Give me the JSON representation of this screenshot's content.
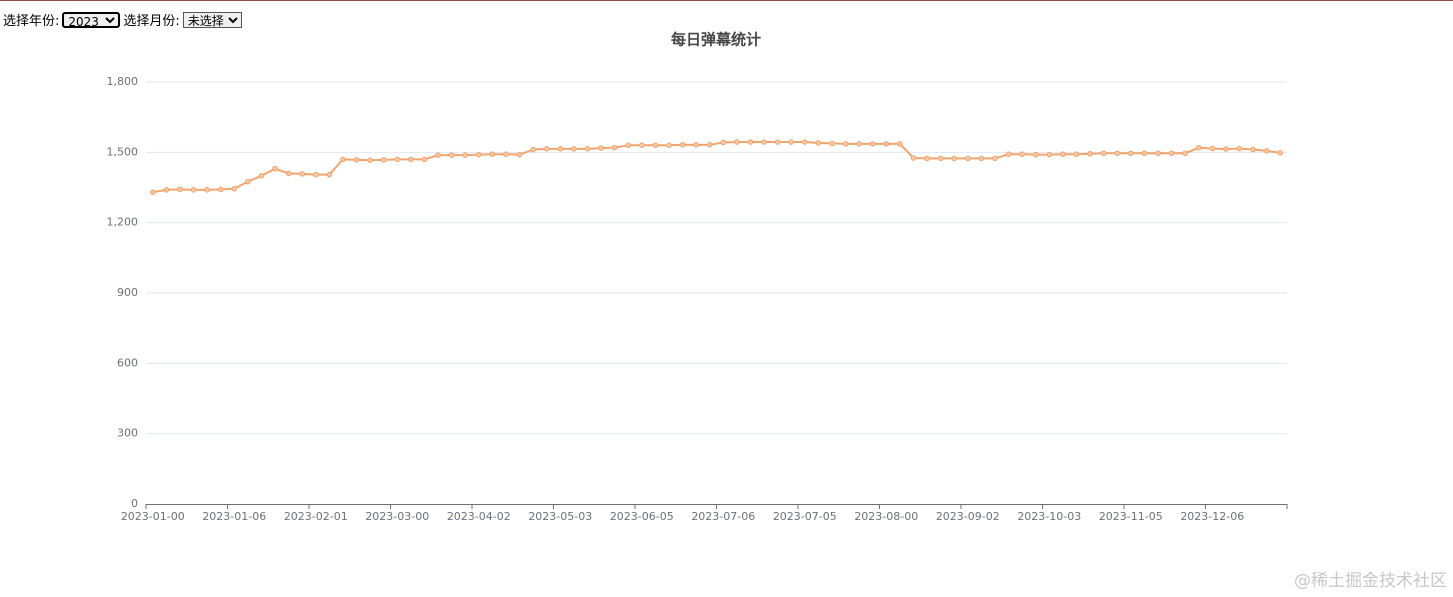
{
  "controls": {
    "year_label": "选择年份:",
    "year_value": "2023",
    "month_label": "选择月份:",
    "month_value": "未选择"
  },
  "watermark": "@稀土掘金技术社区",
  "chart_data": {
    "type": "line",
    "title": "每日弹幕统计",
    "color": "#f0a46e",
    "grid": true,
    "categories": [
      "2023-01-00",
      null,
      null,
      null,
      null,
      null,
      "2023-01-06",
      null,
      null,
      null,
      null,
      null,
      "2023-02-01",
      null,
      null,
      null,
      null,
      null,
      "2023-03-00",
      null,
      null,
      null,
      null,
      null,
      "2023-04-02",
      null,
      null,
      null,
      null,
      null,
      "2023-05-03",
      null,
      null,
      null,
      null,
      null,
      "2023-06-05",
      null,
      null,
      null,
      null,
      null,
      "2023-07-06",
      null,
      null,
      null,
      null,
      null,
      "2023-07-05",
      null,
      null,
      null,
      null,
      null,
      "2023-08-00",
      null,
      null,
      null,
      null,
      null,
      "2023-09-02",
      null,
      null,
      null,
      null,
      null,
      "2023-10-03",
      null,
      null,
      null,
      null,
      null,
      "2023-11-05",
      null,
      null,
      null,
      null,
      null,
      "2023-12-06",
      null,
      null,
      null,
      null,
      null
    ],
    "values": [
      1330,
      1340,
      1342,
      1340,
      1340,
      1342,
      1345,
      1375,
      1400,
      1430,
      1410,
      1408,
      1405,
      1405,
      1470,
      1468,
      1466,
      1468,
      1470,
      1470,
      1470,
      1488,
      1488,
      1488,
      1490,
      1492,
      1492,
      1490,
      1512,
      1515,
      1515,
      1515,
      1515,
      1518,
      1520,
      1530,
      1530,
      1530,
      1530,
      1532,
      1532,
      1532,
      1542,
      1544,
      1544,
      1544,
      1544,
      1544,
      1544,
      1540,
      1538,
      1536,
      1536,
      1536,
      1536,
      1536,
      1476,
      1474,
      1474,
      1474,
      1474,
      1474,
      1474,
      1492,
      1492,
      1490,
      1490,
      1492,
      1492,
      1494,
      1496,
      1496,
      1496,
      1496,
      1496,
      1496,
      1496,
      1520,
      1516,
      1514,
      1516,
      1512,
      1506,
      1498
    ],
    "ylim": [
      0,
      1800
    ],
    "yticks": [
      0,
      300,
      600,
      900,
      {
        "value": 1200,
        "label": "1,200"
      },
      {
        "value": 1500,
        "label": "1,500"
      },
      {
        "value": 1800,
        "label": "1,800"
      }
    ]
  }
}
